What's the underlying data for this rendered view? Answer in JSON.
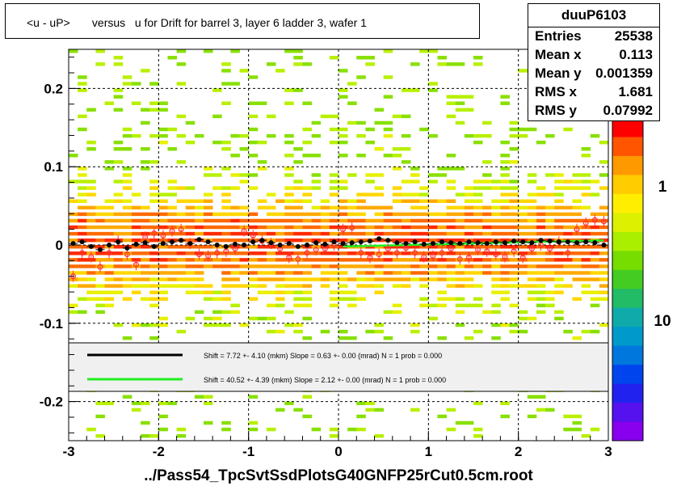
{
  "title": "<u - uP>       versus   u for Drift for barrel 3, layer 6 ladder 3, wafer 1",
  "stats": {
    "name": "duuP6103",
    "rows": [
      {
        "label": "Entries",
        "value": "25538"
      },
      {
        "label": "Mean x",
        "value": "0.113"
      },
      {
        "label": "Mean y",
        "value": "0.001359"
      },
      {
        "label": "RMS x",
        "value": "1.681"
      },
      {
        "label": "RMS y",
        "value": "0.07992"
      }
    ]
  },
  "x_axis_title": "../Pass54_TpcSvtSsdPlotsG40GNFP25rCut0.5cm.root",
  "legend": {
    "entries": [
      {
        "color": "#000000",
        "text": "Shift =    7.72 +- 4.10 (mkm) Slope =    0.63 +- 0.00 (mrad)  N = 1 prob = 0.000"
      },
      {
        "color": "#22ee22",
        "text": "Shift =   40.52 +- 4.39 (mkm) Slope =    2.12 +- 0.00 (mrad)  N = 1 prob = 0.000"
      }
    ]
  },
  "palette_labels": [
    "1",
    "10"
  ],
  "chart_data": {
    "type": "heatmap",
    "xlim": [
      -3,
      3
    ],
    "ylim": [
      -0.25,
      0.25
    ],
    "x_ticks": [
      "-3",
      "-2",
      "-1",
      "0",
      "1",
      "2",
      "3"
    ],
    "y_ticks": [
      "0.2",
      "0.1",
      "0",
      "-0.1",
      "-0.2"
    ],
    "grid": true,
    "colors": {
      "profile": "#000000",
      "fit_line": "#22ee22",
      "red_points": "#ff3333"
    },
    "profile_black": {
      "x": [
        -2.95,
        -2.85,
        -2.75,
        -2.65,
        -2.55,
        -2.45,
        -2.35,
        -2.25,
        -2.15,
        -2.05,
        -1.95,
        -1.85,
        -1.75,
        -1.65,
        -1.55,
        -1.45,
        -1.35,
        -1.25,
        -1.15,
        -1.05,
        -0.95,
        -0.85,
        -0.75,
        -0.65,
        -0.55,
        -0.45,
        -0.35,
        -0.25,
        -0.15,
        -0.05,
        0.05,
        0.15,
        0.25,
        0.35,
        0.45,
        0.55,
        0.65,
        0.75,
        0.85,
        0.95,
        1.05,
        1.15,
        1.25,
        1.35,
        1.45,
        1.55,
        1.65,
        1.75,
        1.85,
        1.95,
        2.05,
        2.15,
        2.25,
        2.35,
        2.45,
        2.55,
        2.65,
        2.75,
        2.85,
        2.95
      ],
      "y": [
        0.002,
        0.004,
        -0.002,
        -0.006,
        0.0,
        0.004,
        -0.004,
        0.001,
        0.003,
        -0.002,
        0.002,
        0.004,
        0.006,
        0.002,
        0.007,
        0.004,
        0.0,
        -0.002,
        0.001,
        0.0,
        0.004,
        0.006,
        0.003,
        0.0,
        0.002,
        -0.002,
        0.0,
        0.003,
        0.001,
        0.004,
        0.002,
        0.003,
        0.004,
        0.005,
        0.008,
        0.006,
        0.003,
        0.002,
        0.004,
        0.001,
        0.002,
        0.004,
        0.003,
        0.002,
        0.004,
        0.003,
        0.002,
        0.004,
        0.003,
        0.005,
        0.004,
        0.003,
        0.006,
        0.005,
        0.004,
        0.004,
        0.003,
        0.004,
        0.003,
        0.0
      ]
    },
    "profile_red": {
      "x": [
        -2.95,
        -2.85,
        -2.75,
        -2.65,
        -2.55,
        -2.45,
        -2.35,
        -2.25,
        -2.15,
        -2.05,
        -1.95,
        -1.85,
        -1.75,
        -1.65,
        -1.55,
        -1.45,
        -1.35,
        -1.25,
        -1.15,
        -1.05,
        -0.95,
        -0.85,
        -0.75,
        -0.65,
        -0.55,
        -0.45,
        -0.35,
        -0.25,
        -0.15,
        -0.05,
        0.05,
        0.15,
        0.25,
        0.35,
        0.45,
        0.55,
        0.65,
        0.75,
        0.85,
        0.95,
        1.05,
        1.15,
        1.25,
        1.35,
        1.45,
        1.55,
        1.65,
        1.75,
        1.85,
        1.95,
        2.05,
        2.15,
        2.25,
        2.35,
        2.45,
        2.55,
        2.65,
        2.75,
        2.85,
        2.95
      ],
      "y": [
        -0.04,
        -0.01,
        -0.015,
        -0.028,
        -0.01,
        0.005,
        -0.012,
        -0.025,
        0.01,
        0.015,
        0.012,
        0.018,
        0.02,
        0.002,
        -0.012,
        -0.014,
        -0.01,
        -0.008,
        -0.005,
        0.018,
        0.012,
        0.005,
        0.002,
        -0.005,
        -0.016,
        -0.018,
        -0.01,
        -0.006,
        -0.005,
        0.0,
        0.02,
        0.022,
        -0.01,
        -0.016,
        -0.012,
        -0.005,
        -0.01,
        -0.004,
        -0.01,
        -0.015,
        -0.014,
        -0.01,
        -0.005,
        -0.018,
        -0.016,
        -0.006,
        -0.008,
        -0.012,
        -0.015,
        -0.008,
        -0.016,
        -0.005,
        0.0,
        -0.005,
        0.004,
        -0.01,
        0.02,
        0.028,
        0.032,
        0.03
      ]
    },
    "fit_green": {
      "x": [
        0.05,
        2.95
      ],
      "y": [
        -0.002,
        0.006
      ]
    }
  }
}
